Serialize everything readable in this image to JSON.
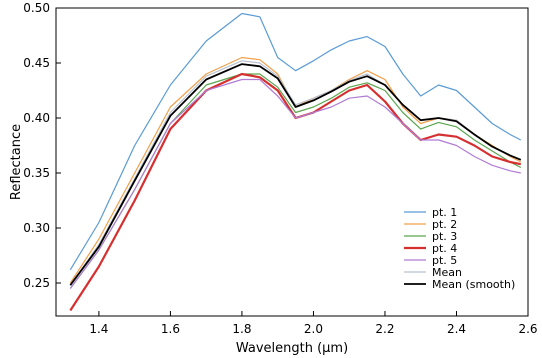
{
  "chart_data": {
    "type": "line",
    "xlabel": "Wavelength (μm)",
    "ylabel": "Reflectance",
    "xlim": [
      1.28,
      2.6
    ],
    "ylim": [
      0.22,
      0.5
    ],
    "xticks": [
      1.4,
      1.6,
      1.8,
      2.0,
      2.2,
      2.4,
      2.6
    ],
    "yticks": [
      0.25,
      0.3,
      0.35,
      0.4,
      0.45,
      0.5
    ],
    "xtick_labels": [
      "1.4",
      "1.6",
      "1.8",
      "2.0",
      "2.2",
      "2.4",
      "2.6"
    ],
    "ytick_labels": [
      "0.25",
      "0.30",
      "0.35",
      "0.40",
      "0.45",
      "0.50"
    ],
    "grid": false,
    "legend_position": "bottom-right",
    "x": [
      1.32,
      1.4,
      1.5,
      1.6,
      1.7,
      1.8,
      1.85,
      1.9,
      1.95,
      2.0,
      2.05,
      2.1,
      2.15,
      2.2,
      2.25,
      2.3,
      2.35,
      2.4,
      2.45,
      2.5,
      2.55,
      2.58
    ],
    "series": [
      {
        "name": "pt. 1",
        "color": "#5b9bd5",
        "width": 1.2,
        "values": [
          0.262,
          0.305,
          0.375,
          0.43,
          0.47,
          0.495,
          0.492,
          0.455,
          0.443,
          0.452,
          0.462,
          0.47,
          0.474,
          0.465,
          0.44,
          0.42,
          0.43,
          0.425,
          0.41,
          0.395,
          0.385,
          0.38
        ]
      },
      {
        "name": "pt. 2",
        "color": "#f0a04b",
        "width": 1.2,
        "values": [
          0.25,
          0.29,
          0.35,
          0.41,
          0.44,
          0.455,
          0.453,
          0.44,
          0.41,
          0.418,
          0.425,
          0.435,
          0.443,
          0.435,
          0.41,
          0.395,
          0.4,
          0.398,
          0.385,
          0.375,
          0.365,
          0.36
        ]
      },
      {
        "name": "pt. 3",
        "color": "#5aa64e",
        "width": 1.2,
        "values": [
          0.245,
          0.28,
          0.335,
          0.395,
          0.43,
          0.44,
          0.44,
          0.428,
          0.405,
          0.41,
          0.418,
          0.428,
          0.432,
          0.425,
          0.405,
          0.39,
          0.396,
          0.392,
          0.38,
          0.37,
          0.36,
          0.355
        ]
      },
      {
        "name": "pt. 4",
        "color": "#d62f2f",
        "width": 2.2,
        "values": [
          0.225,
          0.265,
          0.325,
          0.39,
          0.425,
          0.44,
          0.437,
          0.425,
          0.4,
          0.405,
          0.415,
          0.425,
          0.43,
          0.415,
          0.395,
          0.38,
          0.385,
          0.383,
          0.375,
          0.365,
          0.36,
          0.358
        ]
      },
      {
        "name": "pt. 5",
        "color": "#b07cd4",
        "width": 1.2,
        "values": [
          0.245,
          0.28,
          0.335,
          0.395,
          0.425,
          0.435,
          0.435,
          0.42,
          0.4,
          0.405,
          0.41,
          0.418,
          0.42,
          0.41,
          0.395,
          0.38,
          0.38,
          0.375,
          0.365,
          0.357,
          0.352,
          0.35
        ]
      },
      {
        "name": "Mean",
        "color": "#b9c0cf",
        "width": 1.2,
        "values": [
          0.248,
          0.285,
          0.345,
          0.405,
          0.438,
          0.452,
          0.45,
          0.438,
          0.412,
          0.418,
          0.425,
          0.434,
          0.44,
          0.43,
          0.412,
          0.398,
          0.4,
          0.398,
          0.385,
          0.374,
          0.366,
          0.362
        ]
      },
      {
        "name": "Mean (smooth)",
        "color": "#000000",
        "width": 1.8,
        "values": [
          0.248,
          0.283,
          0.343,
          0.402,
          0.435,
          0.449,
          0.447,
          0.436,
          0.41,
          0.416,
          0.424,
          0.433,
          0.438,
          0.43,
          0.412,
          0.398,
          0.4,
          0.397,
          0.385,
          0.374,
          0.366,
          0.362
        ]
      }
    ]
  }
}
